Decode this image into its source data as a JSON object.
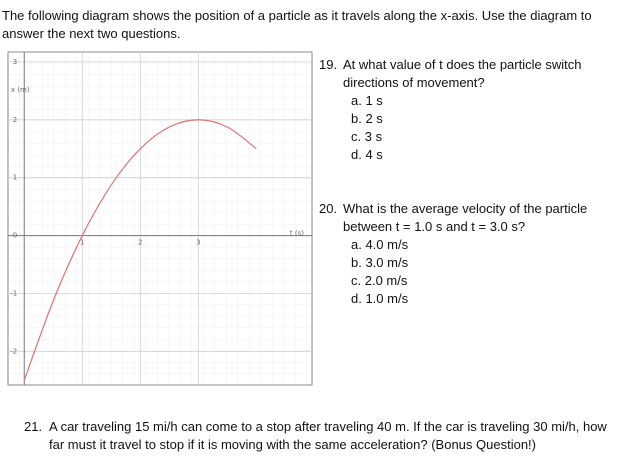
{
  "intro": "The following diagram shows the position of a particle as it travels along the x-axis.  Use the diagram to answer the next two questions.",
  "chart_data": {
    "type": "line",
    "x_label": "t (s)",
    "y_label": "x (m)",
    "x": [
      0,
      0.5,
      1,
      1.5,
      2,
      2.5,
      3,
      3.5,
      4
    ],
    "values": [
      -2.5,
      -1.125,
      0,
      0.875,
      1.5,
      1.875,
      2,
      1.875,
      1.5
    ],
    "color": "#e07070",
    "xlim": [
      -0.28,
      4.96
    ],
    "ylim": [
      -2.58,
      3.17
    ],
    "xticks": [
      1,
      2,
      3
    ],
    "yticks": [
      -2,
      -1,
      0,
      1,
      2,
      3
    ],
    "grid": true
  },
  "questions": [
    {
      "number": "19.",
      "text": "At what value of t does the particle switch directions of movement?",
      "options": [
        "a.  1 s",
        "b.  2 s",
        "c.  3 s",
        "d.  4 s"
      ]
    },
    {
      "number": "20.",
      "text": "What is the average velocity of the particle between t = 1.0 s and t = 3.0 s?",
      "options": [
        "a.  4.0 m/s",
        "b.  3.0 m/s",
        "c.  2.0 m/s",
        "d.  1.0 m/s"
      ]
    },
    {
      "number": "21.",
      "text": "A car traveling 15 mi/h can come to a stop after traveling 40 m.  If the car is traveling 30 mi/h, how far must it travel to stop if it is moving with the same acceleration? (Bonus Question!)"
    }
  ]
}
